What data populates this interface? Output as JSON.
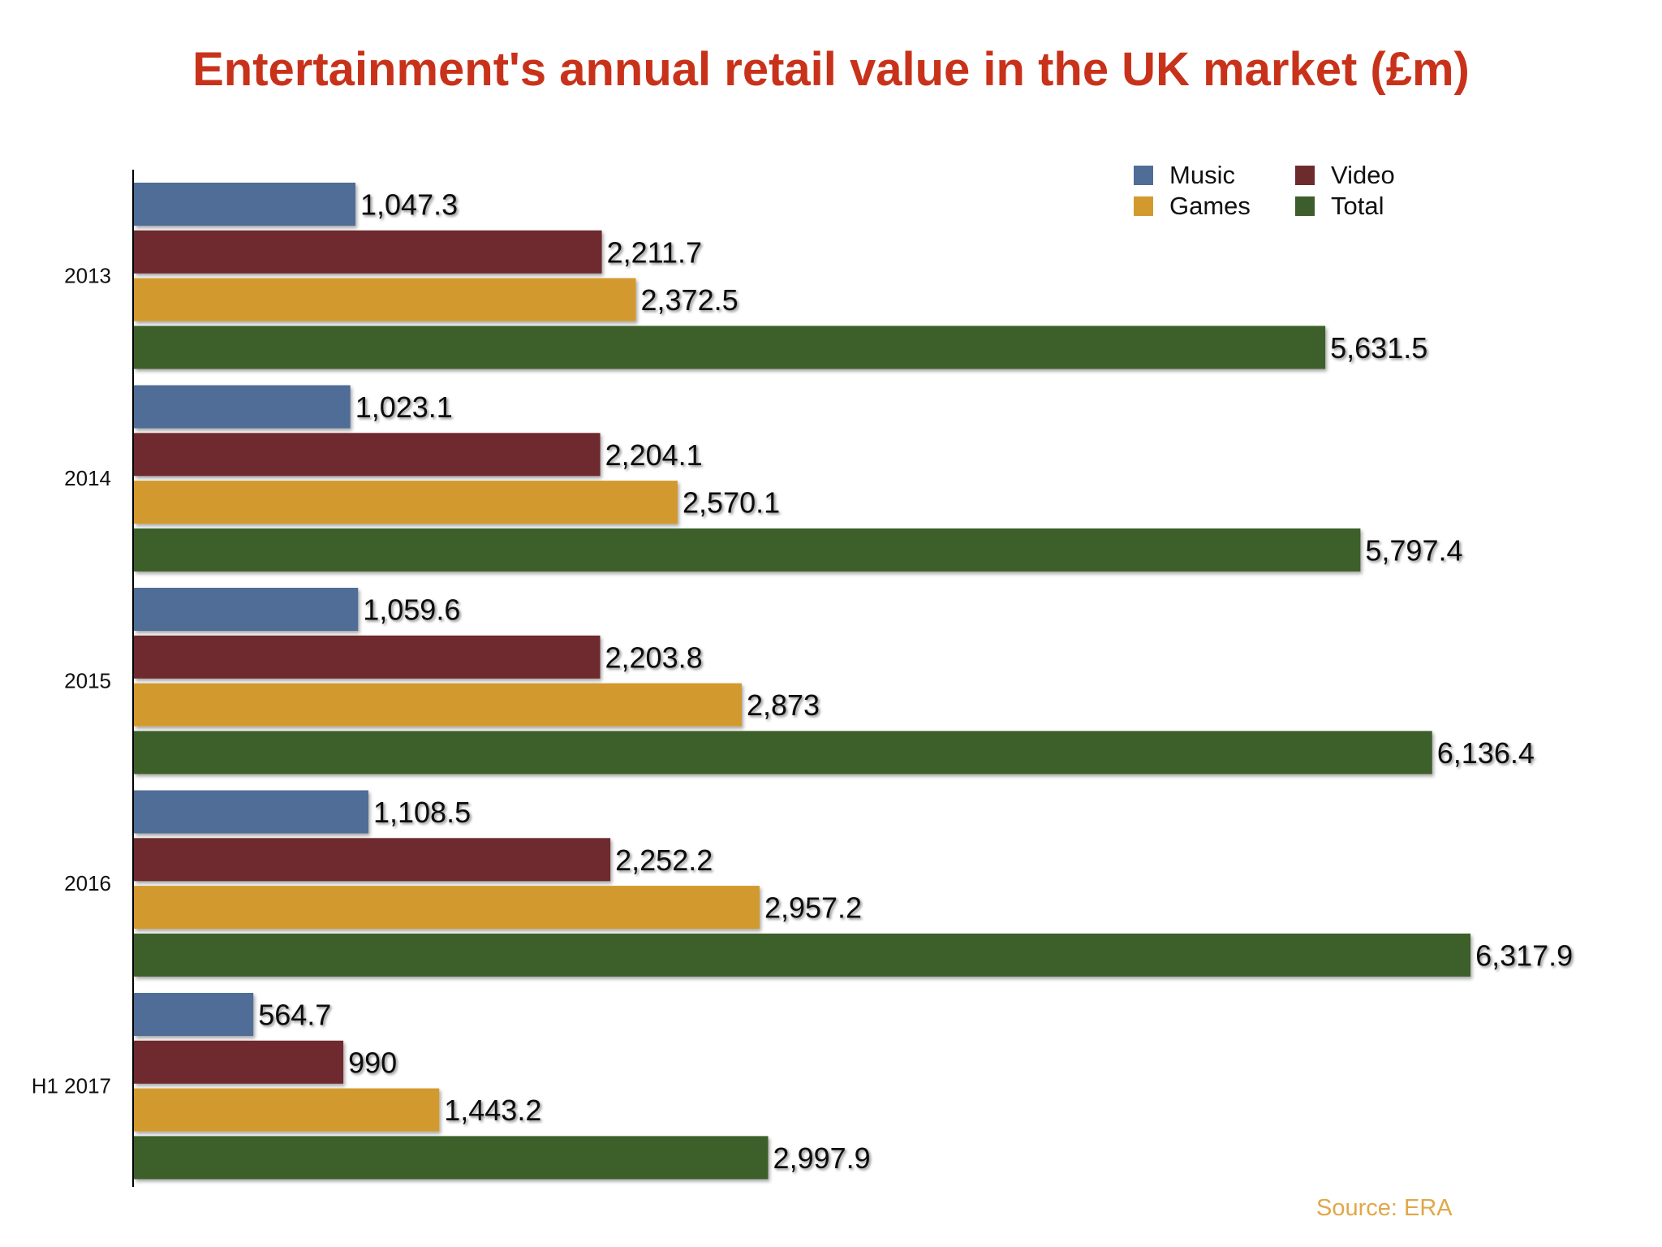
{
  "chart_data": {
    "type": "bar",
    "orientation": "horizontal",
    "title": "Entertainment's annual retail value in the UK market (£m)",
    "categories": [
      "2013",
      "2014",
      "2015",
      "2016",
      "H1 2017"
    ],
    "series": [
      {
        "name": "Music",
        "color": "#4f6d96",
        "values": [
          1047.3,
          1023.1,
          1059.6,
          1108.5,
          564.7
        ],
        "labels": [
          "1,047.3",
          "1,023.1",
          "1,059.6",
          "1,108.5",
          "564.7"
        ]
      },
      {
        "name": "Video",
        "color": "#6e2b2e",
        "values": [
          2211.7,
          2204.1,
          2203.8,
          2252.2,
          990
        ],
        "labels": [
          "2,211.7",
          "2,204.1",
          "2,203.8",
          "2,252.2",
          "990"
        ]
      },
      {
        "name": "Games",
        "color": "#d29a2e",
        "values": [
          2372.5,
          2570.1,
          2873,
          2957.2,
          1443.2
        ],
        "labels": [
          "2,372.5",
          "2,570.1",
          "2,873",
          "2,957.2",
          "1,443.2"
        ]
      },
      {
        "name": "Total",
        "color": "#3d5e2c",
        "values": [
          5631.5,
          5797.4,
          6136.4,
          6317.9,
          2997.9
        ],
        "labels": [
          "5,631.5",
          "5,797.4",
          "6,136.4",
          "6,317.9",
          "2,997.9"
        ]
      }
    ],
    "xlim": [
      0,
      7000
    ],
    "grid": false,
    "legend": "top-right",
    "source": "Source: ERA"
  }
}
